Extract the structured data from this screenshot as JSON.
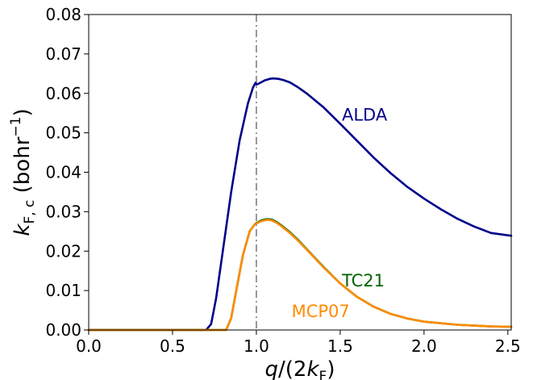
{
  "chart_data": {
    "type": "line",
    "title": "",
    "xlabel": "q/(2k_F)",
    "ylabel": "k_F,c (bohr^-1)",
    "xlim": [
      0.0,
      2.52
    ],
    "ylim": [
      0.0,
      0.08
    ],
    "x_ticks": [
      "0.0",
      "0.5",
      "1.0",
      "1.5",
      "2.0",
      "2.5"
    ],
    "x_tick_values": [
      0.0,
      0.5,
      1.0,
      1.5,
      2.0,
      2.5
    ],
    "y_ticks": [
      "0.00",
      "0.01",
      "0.02",
      "0.03",
      "0.04",
      "0.05",
      "0.06",
      "0.07",
      "0.08"
    ],
    "y_tick_values": [
      0.0,
      0.01,
      0.02,
      0.03,
      0.04,
      0.05,
      0.06,
      0.07,
      0.08
    ],
    "grid": false,
    "legend": "none",
    "reference_line": {
      "x": 1.0,
      "style": "dash-dot",
      "color": "#7f7f7f"
    },
    "series": [
      {
        "name": "ALDA",
        "color": "#00008b",
        "label_at": [
          1.51,
          0.0545
        ],
        "x": [
          0.0,
          0.7,
          0.73,
          0.76,
          0.8,
          0.85,
          0.9,
          0.95,
          0.98,
          0.995,
          1.0,
          1.02,
          1.05,
          1.08,
          1.1,
          1.13,
          1.16,
          1.2,
          1.25,
          1.3,
          1.4,
          1.5,
          1.6,
          1.7,
          1.8,
          1.9,
          2.0,
          2.1,
          2.2,
          2.3,
          2.4,
          2.52
        ],
        "y": [
          0.0,
          0.0,
          0.0015,
          0.008,
          0.02,
          0.035,
          0.048,
          0.0575,
          0.0615,
          0.0627,
          0.0622,
          0.0626,
          0.0633,
          0.0637,
          0.0638,
          0.0637,
          0.0634,
          0.0628,
          0.0615,
          0.06,
          0.0565,
          0.0523,
          0.048,
          0.0437,
          0.0398,
          0.0363,
          0.0333,
          0.0306,
          0.0282,
          0.0262,
          0.0246,
          0.0239
        ]
      },
      {
        "name": "TC21",
        "color": "#006400",
        "label_at": [
          1.51,
          0.0125
        ],
        "x": [
          0.0,
          0.82,
          0.85,
          0.88,
          0.92,
          0.96,
          0.99,
          1.0,
          1.03,
          1.06,
          1.09,
          1.12,
          1.15,
          1.2,
          1.25,
          1.3,
          1.4,
          1.5,
          1.6,
          1.7,
          1.8,
          1.9,
          2.0,
          2.2,
          2.4,
          2.52
        ],
        "y": [
          0.0,
          0.0,
          0.003,
          0.01,
          0.019,
          0.025,
          0.0268,
          0.0271,
          0.0278,
          0.0281,
          0.028,
          0.0274,
          0.0265,
          0.0248,
          0.0228,
          0.0205,
          0.016,
          0.0118,
          0.0084,
          0.0059,
          0.0041,
          0.0029,
          0.0021,
          0.0013,
          0.0009,
          0.0008
        ]
      },
      {
        "name": "MCP07",
        "color": "#ff8c00",
        "label_at": [
          1.21,
          0.0047
        ],
        "x": [
          0.0,
          0.82,
          0.85,
          0.88,
          0.92,
          0.96,
          0.99,
          1.0,
          1.03,
          1.06,
          1.09,
          1.12,
          1.15,
          1.2,
          1.25,
          1.3,
          1.4,
          1.5,
          1.6,
          1.7,
          1.8,
          1.9,
          2.0,
          2.2,
          2.4,
          2.52
        ],
        "y": [
          0.0,
          0.0,
          0.003,
          0.01,
          0.019,
          0.025,
          0.0268,
          0.027,
          0.0276,
          0.0279,
          0.0278,
          0.0272,
          0.0263,
          0.0246,
          0.0226,
          0.0204,
          0.0159,
          0.0118,
          0.0084,
          0.0059,
          0.0041,
          0.0029,
          0.0021,
          0.0013,
          0.0009,
          0.0008
        ]
      }
    ]
  }
}
